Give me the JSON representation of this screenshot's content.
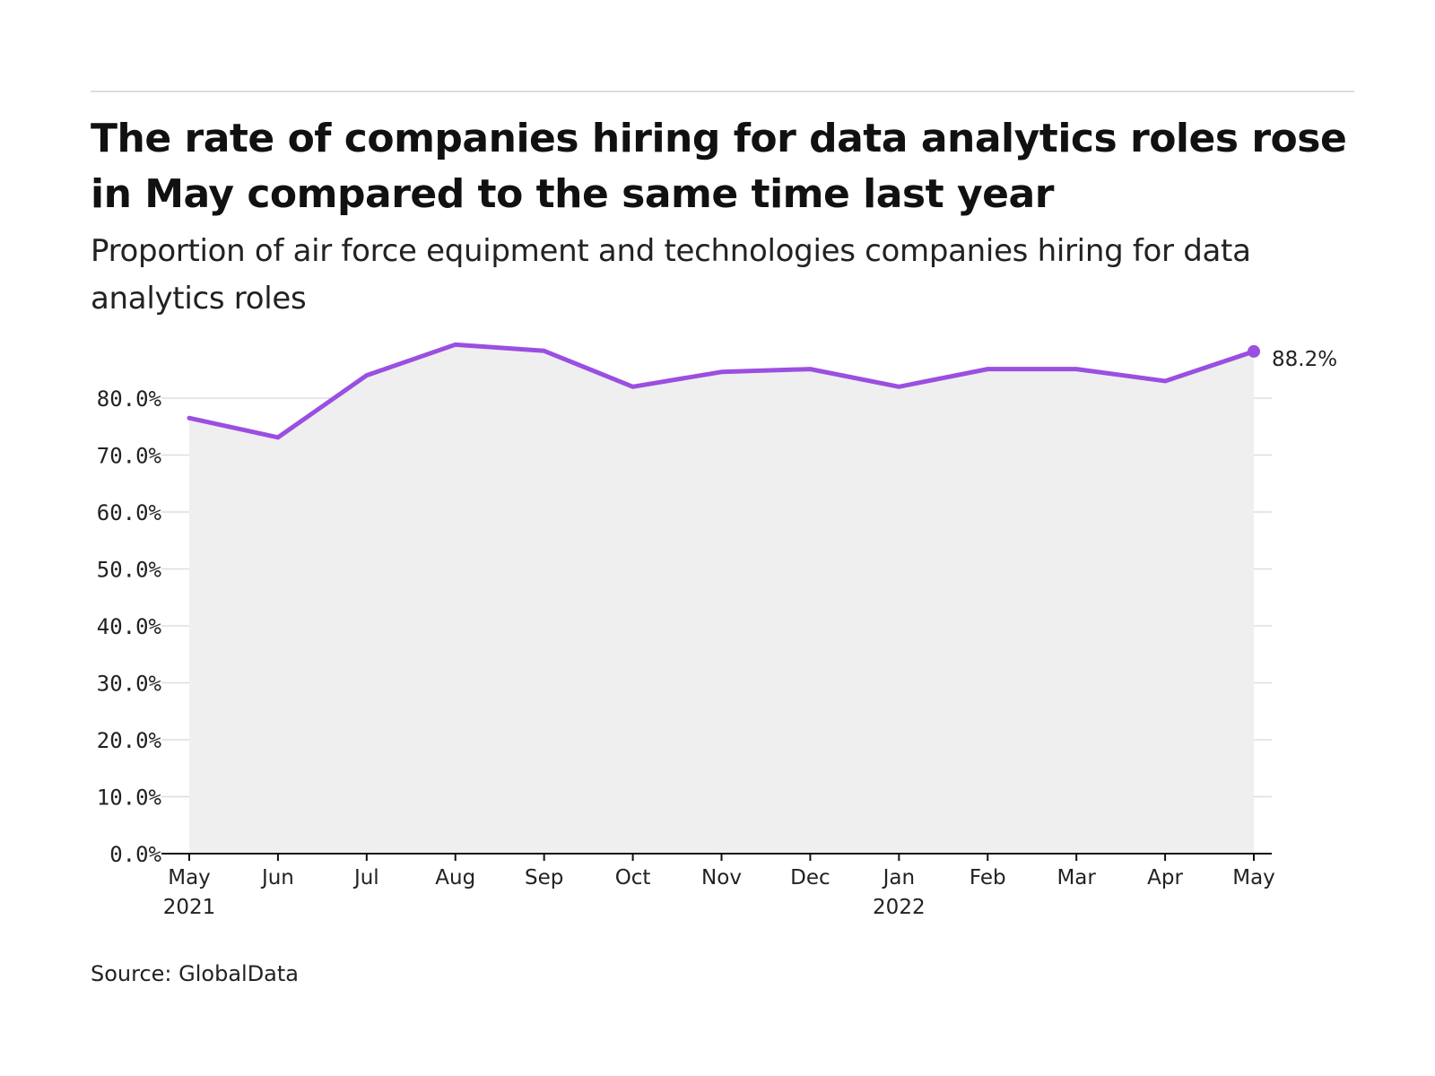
{
  "title": "The rate of companies hiring for data analytics roles rose in May compared to the same time last year",
  "subtitle": "Proportion of air force equipment and technologies companies hiring for data analytics roles",
  "source": "Source: GlobalData",
  "colors": {
    "line": "#9B4FE0",
    "area": "#EFEFEF",
    "grid": "#DDDDDD",
    "axis": "#111111"
  },
  "chart_data": {
    "type": "area",
    "title": "The rate of companies hiring for data analytics roles rose in May compared to the same time last year",
    "subtitle": "Proportion of air force equipment and technologies companies hiring for data analytics roles",
    "categories": [
      "May 2021",
      "Jun",
      "Jul",
      "Aug",
      "Sep",
      "Oct",
      "Nov",
      "Dec",
      "Jan 2022",
      "Feb",
      "Mar",
      "Apr",
      "May"
    ],
    "x_tick_labels": [
      {
        "line1": "May",
        "line2": "2021"
      },
      {
        "line1": "Jun",
        "line2": ""
      },
      {
        "line1": "Jul",
        "line2": ""
      },
      {
        "line1": "Aug",
        "line2": ""
      },
      {
        "line1": "Sep",
        "line2": ""
      },
      {
        "line1": "Oct",
        "line2": ""
      },
      {
        "line1": "Nov",
        "line2": ""
      },
      {
        "line1": "Dec",
        "line2": ""
      },
      {
        "line1": "Jan",
        "line2": "2022"
      },
      {
        "line1": "Feb",
        "line2": ""
      },
      {
        "line1": "Mar",
        "line2": ""
      },
      {
        "line1": "Apr",
        "line2": ""
      },
      {
        "line1": "May",
        "line2": ""
      }
    ],
    "values": [
      76.5,
      73.1,
      84.0,
      89.4,
      88.3,
      82.0,
      84.6,
      85.1,
      82.0,
      85.1,
      85.1,
      83.0,
      88.2
    ],
    "ylim": [
      0,
      90
    ],
    "y_ticks": [
      0,
      10,
      20,
      30,
      40,
      50,
      60,
      70,
      80
    ],
    "y_tick_labels": [
      "0.0%",
      "10.0%",
      "20.0%",
      "30.0%",
      "40.0%",
      "50.0%",
      "60.0%",
      "70.0%",
      "80.0%"
    ],
    "end_label": "88.2%",
    "grid": true,
    "xlabel": "",
    "ylabel": ""
  }
}
